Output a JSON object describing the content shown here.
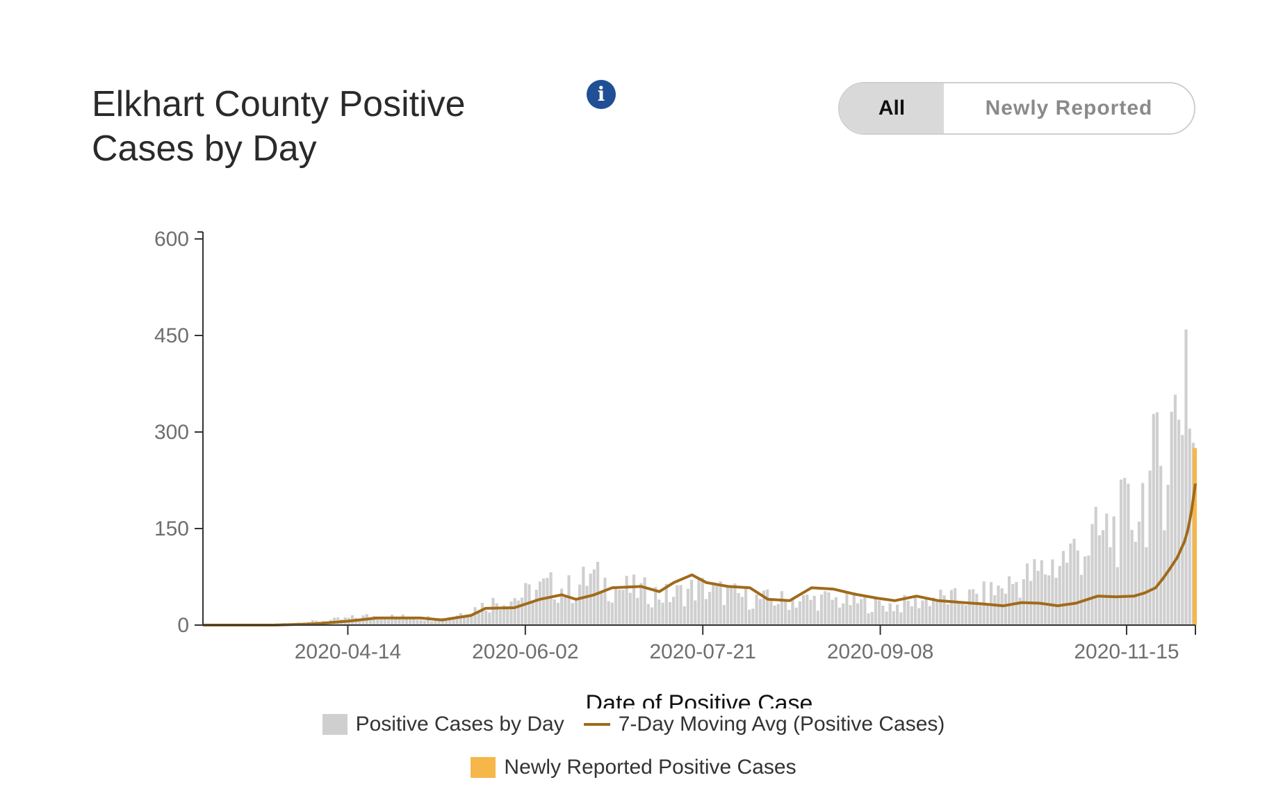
{
  "header": {
    "title": "Elkhart County Positive Cases by Day",
    "info_icon": "info-icon",
    "toggle": {
      "all_label": "All",
      "new_label": "Newly Reported",
      "selected": "All"
    }
  },
  "colors": {
    "bars": "#cfcfcf",
    "avg_line": "#a06a1a",
    "newly": "#f5b74a",
    "info": "#1f4f94"
  },
  "chart_data": {
    "type": "bar",
    "title": "Elkhart County Positive Cases by Day",
    "xlabel": "Date of Positive Case",
    "ylabel": "",
    "ylim": [
      0,
      600
    ],
    "yticks": [
      0,
      150,
      300,
      450,
      600
    ],
    "xticks": [
      "2020-04-14",
      "2020-06-02",
      "2020-07-21",
      "2020-09-08",
      "2020-11-15"
    ],
    "x_range": [
      "2020-03-05",
      "2020-12-04"
    ],
    "series": [
      {
        "name": "Positive Cases by Day",
        "kind": "bar",
        "color": "#cfcfcf",
        "points": [
          [
            "2020-03-05",
            0
          ],
          [
            "2020-03-20",
            1
          ],
          [
            "2020-04-01",
            4
          ],
          [
            "2020-04-10",
            8
          ],
          [
            "2020-04-20",
            14
          ],
          [
            "2020-04-30",
            12
          ],
          [
            "2020-05-10",
            10
          ],
          [
            "2020-05-17",
            22
          ],
          [
            "2020-05-24",
            35
          ],
          [
            "2020-06-01",
            45
          ],
          [
            "2020-06-08",
            60
          ],
          [
            "2020-06-15",
            55
          ],
          [
            "2020-06-20",
            75
          ],
          [
            "2020-06-27",
            58
          ],
          [
            "2020-07-05",
            52
          ],
          [
            "2020-07-12",
            45
          ],
          [
            "2020-07-20",
            58
          ],
          [
            "2020-07-27",
            50
          ],
          [
            "2020-08-05",
            40
          ],
          [
            "2020-08-15",
            38
          ],
          [
            "2020-08-25",
            40
          ],
          [
            "2020-09-05",
            33
          ],
          [
            "2020-09-13",
            30
          ],
          [
            "2020-09-22",
            42
          ],
          [
            "2020-09-30",
            40
          ],
          [
            "2020-10-08",
            48
          ],
          [
            "2020-10-15",
            65
          ],
          [
            "2020-10-22",
            80
          ],
          [
            "2020-10-28",
            100
          ],
          [
            "2020-11-03",
            120
          ],
          [
            "2020-11-10",
            140
          ],
          [
            "2020-11-17",
            170
          ],
          [
            "2020-11-22",
            220
          ],
          [
            "2020-11-26",
            260
          ],
          [
            "2020-11-29",
            320
          ],
          [
            "2020-12-01",
            380
          ],
          [
            "2020-12-02",
            445
          ],
          [
            "2020-12-03",
            380
          ],
          [
            "2020-12-04",
            280
          ]
        ]
      },
      {
        "name": "7-Day Moving Avg (Positive Cases)",
        "kind": "line",
        "color": "#a06a1a",
        "points": [
          [
            "2020-03-05",
            0
          ],
          [
            "2020-03-25",
            0
          ],
          [
            "2020-04-05",
            2
          ],
          [
            "2020-04-14",
            6
          ],
          [
            "2020-04-22",
            11
          ],
          [
            "2020-05-04",
            11
          ],
          [
            "2020-05-10",
            8
          ],
          [
            "2020-05-18",
            15
          ],
          [
            "2020-05-22",
            26
          ],
          [
            "2020-05-30",
            27
          ],
          [
            "2020-06-06",
            40
          ],
          [
            "2020-06-12",
            47
          ],
          [
            "2020-06-16",
            40
          ],
          [
            "2020-06-21",
            47
          ],
          [
            "2020-06-26",
            58
          ],
          [
            "2020-07-04",
            60
          ],
          [
            "2020-07-09",
            52
          ],
          [
            "2020-07-13",
            66
          ],
          [
            "2020-07-18",
            78
          ],
          [
            "2020-07-22",
            66
          ],
          [
            "2020-07-28",
            60
          ],
          [
            "2020-08-03",
            58
          ],
          [
            "2020-08-08",
            40
          ],
          [
            "2020-08-14",
            38
          ],
          [
            "2020-08-20",
            58
          ],
          [
            "2020-08-26",
            56
          ],
          [
            "2020-09-01",
            48
          ],
          [
            "2020-09-07",
            42
          ],
          [
            "2020-09-12",
            38
          ],
          [
            "2020-09-18",
            45
          ],
          [
            "2020-09-24",
            38
          ],
          [
            "2020-10-01",
            35
          ],
          [
            "2020-10-06",
            33
          ],
          [
            "2020-10-12",
            30
          ],
          [
            "2020-10-17",
            35
          ],
          [
            "2020-10-22",
            34
          ],
          [
            "2020-10-27",
            30
          ],
          [
            "2020-11-01",
            34
          ],
          [
            "2020-11-07",
            45
          ],
          [
            "2020-11-12",
            44
          ],
          [
            "2020-11-17",
            45
          ],
          [
            "2020-11-20",
            50
          ],
          [
            "2020-11-23",
            58
          ],
          [
            "2020-11-25",
            72
          ],
          [
            "2020-11-27",
            88
          ],
          [
            "2020-11-29",
            105
          ],
          [
            "2020-12-01",
            130
          ],
          [
            "2020-12-02",
            150
          ],
          [
            "2020-12-03",
            180
          ],
          [
            "2020-12-04",
            220
          ]
        ]
      },
      {
        "name": "Newly Reported Positive Cases",
        "kind": "bar",
        "color": "#f5b74a",
        "points": [
          [
            "2020-12-04",
            275
          ]
        ]
      }
    ],
    "legend": [
      "Positive Cases by Day",
      "7-Day Moving Avg (Positive Cases)",
      "Newly Reported Positive Cases"
    ],
    "legend_position": "bottom"
  }
}
